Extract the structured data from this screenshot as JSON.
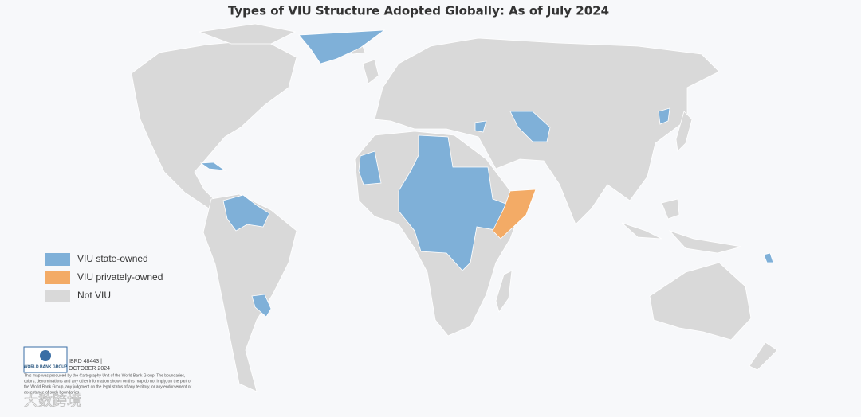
{
  "title": "Types of VIU Structure Adopted Globally: As of July 2024",
  "legend": [
    {
      "label": "VIU state-owned",
      "color": "#7fb0d8"
    },
    {
      "label": "VIU privately-owned",
      "color": "#f3ab66"
    },
    {
      "label": "Not VIU",
      "color": "#d9d9d9"
    }
  ],
  "credit": {
    "logo": "WORLD BANK GROUP",
    "id": "IBRD 48443 |",
    "date": "OCTOBER 2024",
    "disclaimer": [
      "This map was produced by the Cartography Unit of the World Bank Group. The boundaries,",
      "colors, denominations and any other information shown on this map do not imply, on the part of",
      "the World Bank Group, any judgment on the legal status of any territory, or any endorsement or",
      "acceptance of such boundaries."
    ]
  },
  "watermark": "大数跨境"
}
